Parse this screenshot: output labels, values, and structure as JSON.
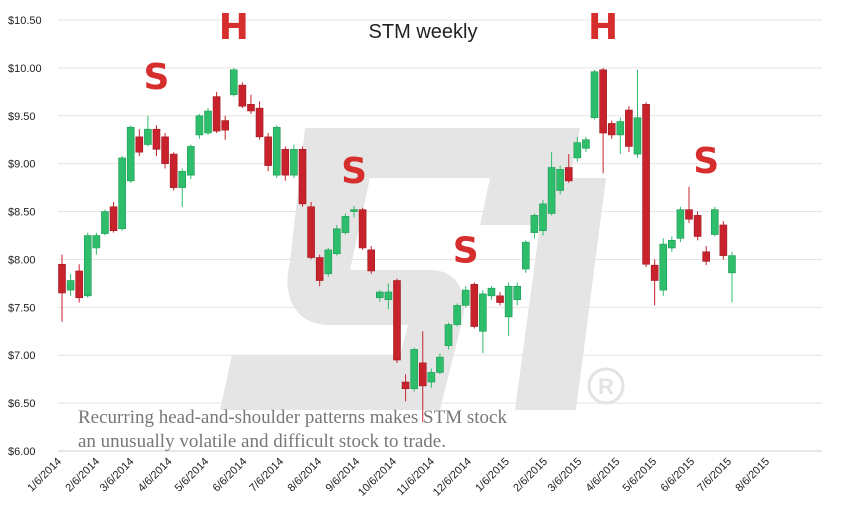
{
  "chart_data": {
    "type": "candlestick",
    "title": "STM weekly",
    "ylim": [
      6.0,
      10.5
    ],
    "yticks": [
      "$6.00",
      "$6.50",
      "$7.00",
      "$7.50",
      "$8.00",
      "$8.50",
      "$9.00",
      "$9.50",
      "$10.00",
      "$10.50"
    ],
    "ytick_values": [
      6.0,
      6.5,
      7.0,
      7.5,
      8.0,
      8.5,
      9.0,
      9.5,
      10.0,
      10.5
    ],
    "xticks": [
      "1/6/2014",
      "2/6/2014",
      "3/6/2014",
      "4/6/2014",
      "5/6/2014",
      "6/6/2014",
      "7/6/2014",
      "8/6/2014",
      "9/6/2014",
      "10/6/2014",
      "11/6/2014",
      "12/6/2014",
      "1/6/2015",
      "2/6/2015",
      "3/6/2015",
      "4/6/2015",
      "5/6/2015",
      "6/6/2015",
      "7/6/2015",
      "8/6/2015"
    ],
    "grid": true,
    "up_color": "#2ebd6b",
    "down_color": "#c8232c",
    "annotations": [
      {
        "text": "S",
        "x": "2014-03-24",
        "y": 9.78
      },
      {
        "text": "H",
        "x": "2014-05-26",
        "y": 10.3
      },
      {
        "text": "S",
        "x": "2014-09-01",
        "y": 8.8
      },
      {
        "text": "S",
        "x": "2014-12-01",
        "y": 7.97
      },
      {
        "text": "H",
        "x": "2015-03-23",
        "y": 10.3
      },
      {
        "text": "S",
        "x": "2015-06-15",
        "y": 8.9
      }
    ],
    "note": [
      "Recurring head-and-shoulder patterns makes STM stock",
      "an unusually volatile and difficult stock to trade."
    ],
    "candles": [
      {
        "date": "2014-01-06",
        "o": 7.95,
        "h": 8.05,
        "l": 7.35,
        "c": 7.65
      },
      {
        "date": "2014-01-13",
        "o": 7.68,
        "h": 7.85,
        "l": 7.62,
        "c": 7.78
      },
      {
        "date": "2014-01-20",
        "o": 7.88,
        "h": 7.95,
        "l": 7.55,
        "c": 7.6
      },
      {
        "date": "2014-01-27",
        "o": 7.62,
        "h": 8.28,
        "l": 7.6,
        "c": 8.25
      },
      {
        "date": "2014-02-03",
        "o": 8.12,
        "h": 8.28,
        "l": 8.05,
        "c": 8.25
      },
      {
        "date": "2014-02-10",
        "o": 8.27,
        "h": 8.52,
        "l": 8.25,
        "c": 8.5
      },
      {
        "date": "2014-02-17",
        "o": 8.55,
        "h": 8.6,
        "l": 8.28,
        "c": 8.3
      },
      {
        "date": "2014-02-24",
        "o": 8.32,
        "h": 9.08,
        "l": 8.3,
        "c": 9.06
      },
      {
        "date": "2014-03-03",
        "o": 8.82,
        "h": 9.4,
        "l": 8.8,
        "c": 9.38
      },
      {
        "date": "2014-03-10",
        "o": 9.28,
        "h": 9.36,
        "l": 9.08,
        "c": 9.12
      },
      {
        "date": "2014-03-17",
        "o": 9.2,
        "h": 9.5,
        "l": 9.18,
        "c": 9.36
      },
      {
        "date": "2014-03-24",
        "o": 9.36,
        "h": 9.4,
        "l": 9.08,
        "c": 9.15
      },
      {
        "date": "2014-03-31",
        "o": 9.28,
        "h": 9.32,
        "l": 8.95,
        "c": 9.0
      },
      {
        "date": "2014-04-07",
        "o": 9.1,
        "h": 9.12,
        "l": 8.72,
        "c": 8.75
      },
      {
        "date": "2014-04-14",
        "o": 8.75,
        "h": 8.95,
        "l": 8.55,
        "c": 8.92
      },
      {
        "date": "2014-04-21",
        "o": 8.88,
        "h": 9.2,
        "l": 8.84,
        "c": 9.18
      },
      {
        "date": "2014-04-28",
        "o": 9.3,
        "h": 9.52,
        "l": 9.26,
        "c": 9.5
      },
      {
        "date": "2014-05-05",
        "o": 9.32,
        "h": 9.58,
        "l": 9.3,
        "c": 9.55
      },
      {
        "date": "2014-05-12",
        "o": 9.7,
        "h": 9.75,
        "l": 9.32,
        "c": 9.34
      },
      {
        "date": "2014-05-19",
        "o": 9.45,
        "h": 9.5,
        "l": 9.25,
        "c": 9.35
      },
      {
        "date": "2014-05-26",
        "o": 9.72,
        "h": 10.0,
        "l": 9.7,
        "c": 9.98
      },
      {
        "date": "2014-06-02",
        "o": 9.82,
        "h": 9.85,
        "l": 9.58,
        "c": 9.6
      },
      {
        "date": "2014-06-09",
        "o": 9.62,
        "h": 9.72,
        "l": 9.52,
        "c": 9.55
      },
      {
        "date": "2014-06-16",
        "o": 9.58,
        "h": 9.65,
        "l": 9.25,
        "c": 9.28
      },
      {
        "date": "2014-06-23",
        "o": 9.28,
        "h": 9.32,
        "l": 8.92,
        "c": 8.98
      },
      {
        "date": "2014-06-30",
        "o": 8.88,
        "h": 9.4,
        "l": 8.85,
        "c": 9.38
      },
      {
        "date": "2014-07-07",
        "o": 9.15,
        "h": 9.18,
        "l": 8.82,
        "c": 8.88
      },
      {
        "date": "2014-07-14",
        "o": 8.88,
        "h": 9.2,
        "l": 8.85,
        "c": 9.15
      },
      {
        "date": "2014-07-21",
        "o": 9.15,
        "h": 9.18,
        "l": 8.55,
        "c": 8.58
      },
      {
        "date": "2014-07-28",
        "o": 8.55,
        "h": 8.6,
        "l": 8.0,
        "c": 8.02
      },
      {
        "date": "2014-08-04",
        "o": 8.02,
        "h": 8.05,
        "l": 7.72,
        "c": 7.78
      },
      {
        "date": "2014-08-11",
        "o": 7.85,
        "h": 8.12,
        "l": 7.82,
        "c": 8.1
      },
      {
        "date": "2014-08-18",
        "o": 8.06,
        "h": 8.36,
        "l": 8.04,
        "c": 8.32
      },
      {
        "date": "2014-08-25",
        "o": 8.28,
        "h": 8.48,
        "l": 8.26,
        "c": 8.45
      },
      {
        "date": "2014-09-01",
        "o": 8.5,
        "h": 8.56,
        "l": 8.44,
        "c": 8.52
      },
      {
        "date": "2014-09-08",
        "o": 8.52,
        "h": 8.54,
        "l": 8.1,
        "c": 8.12
      },
      {
        "date": "2014-09-15",
        "o": 8.1,
        "h": 8.14,
        "l": 7.85,
        "c": 7.88
      },
      {
        "date": "2014-09-22",
        "o": 7.6,
        "h": 7.68,
        "l": 7.56,
        "c": 7.66
      },
      {
        "date": "2014-09-29",
        "o": 7.58,
        "h": 7.75,
        "l": 7.48,
        "c": 7.66
      },
      {
        "date": "2014-10-06",
        "o": 7.78,
        "h": 7.8,
        "l": 6.92,
        "c": 6.95
      },
      {
        "date": "2014-10-13",
        "o": 6.72,
        "h": 6.8,
        "l": 6.52,
        "c": 6.65
      },
      {
        "date": "2014-10-20",
        "o": 6.65,
        "h": 7.08,
        "l": 6.62,
        "c": 7.06
      },
      {
        "date": "2014-10-27",
        "o": 6.92,
        "h": 7.25,
        "l": 6.3,
        "c": 6.68
      },
      {
        "date": "2014-11-03",
        "o": 6.72,
        "h": 6.86,
        "l": 6.66,
        "c": 6.82
      },
      {
        "date": "2014-11-10",
        "o": 6.82,
        "h": 7.02,
        "l": 6.8,
        "c": 6.98
      },
      {
        "date": "2014-11-17",
        "o": 7.1,
        "h": 7.34,
        "l": 7.06,
        "c": 7.32
      },
      {
        "date": "2014-11-24",
        "o": 7.32,
        "h": 7.54,
        "l": 7.3,
        "c": 7.52
      },
      {
        "date": "2014-12-01",
        "o": 7.52,
        "h": 7.72,
        "l": 7.5,
        "c": 7.68
      },
      {
        "date": "2014-12-08",
        "o": 7.74,
        "h": 7.76,
        "l": 7.28,
        "c": 7.3
      },
      {
        "date": "2014-12-15",
        "o": 7.25,
        "h": 7.68,
        "l": 7.02,
        "c": 7.64
      },
      {
        "date": "2014-12-22",
        "o": 7.62,
        "h": 7.72,
        "l": 7.58,
        "c": 7.7
      },
      {
        "date": "2014-12-29",
        "o": 7.62,
        "h": 7.66,
        "l": 7.52,
        "c": 7.55
      },
      {
        "date": "2015-01-05",
        "o": 7.4,
        "h": 7.76,
        "l": 7.2,
        "c": 7.72
      },
      {
        "date": "2015-01-12",
        "o": 7.58,
        "h": 7.76,
        "l": 7.52,
        "c": 7.72
      },
      {
        "date": "2015-01-19",
        "o": 7.9,
        "h": 8.2,
        "l": 7.86,
        "c": 8.18
      },
      {
        "date": "2015-01-26",
        "o": 8.28,
        "h": 8.48,
        "l": 8.22,
        "c": 8.46
      },
      {
        "date": "2015-02-02",
        "o": 8.3,
        "h": 8.62,
        "l": 8.25,
        "c": 8.58
      },
      {
        "date": "2015-02-09",
        "o": 8.48,
        "h": 9.12,
        "l": 8.46,
        "c": 8.96
      },
      {
        "date": "2015-02-16",
        "o": 8.72,
        "h": 8.98,
        "l": 8.68,
        "c": 8.94
      },
      {
        "date": "2015-02-23",
        "o": 8.96,
        "h": 9.1,
        "l": 8.8,
        "c": 8.82
      },
      {
        "date": "2015-03-02",
        "o": 9.06,
        "h": 9.28,
        "l": 9.02,
        "c": 9.22
      },
      {
        "date": "2015-03-09",
        "o": 9.16,
        "h": 9.28,
        "l": 9.12,
        "c": 9.25
      },
      {
        "date": "2015-03-16",
        "o": 9.48,
        "h": 9.98,
        "l": 9.46,
        "c": 9.96
      },
      {
        "date": "2015-03-23",
        "o": 9.98,
        "h": 10.0,
        "l": 8.9,
        "c": 9.32
      },
      {
        "date": "2015-03-30",
        "o": 9.42,
        "h": 9.45,
        "l": 9.26,
        "c": 9.3
      },
      {
        "date": "2015-04-06",
        "o": 9.3,
        "h": 9.48,
        "l": 9.1,
        "c": 9.44
      },
      {
        "date": "2015-04-13",
        "o": 9.56,
        "h": 9.6,
        "l": 9.12,
        "c": 9.18
      },
      {
        "date": "2015-04-20",
        "o": 9.1,
        "h": 9.98,
        "l": 9.06,
        "c": 9.48
      },
      {
        "date": "2015-04-27",
        "o": 9.62,
        "h": 9.64,
        "l": 7.92,
        "c": 7.95
      },
      {
        "date": "2015-05-04",
        "o": 7.94,
        "h": 8.0,
        "l": 7.52,
        "c": 7.78
      },
      {
        "date": "2015-05-11",
        "o": 7.68,
        "h": 8.22,
        "l": 7.62,
        "c": 8.16
      },
      {
        "date": "2015-05-18",
        "o": 8.12,
        "h": 8.24,
        "l": 8.08,
        "c": 8.2
      },
      {
        "date": "2015-05-25",
        "o": 8.22,
        "h": 8.55,
        "l": 8.18,
        "c": 8.52
      },
      {
        "date": "2015-06-01",
        "o": 8.52,
        "h": 8.76,
        "l": 8.38,
        "c": 8.42
      },
      {
        "date": "2015-06-08",
        "o": 8.46,
        "h": 8.5,
        "l": 8.2,
        "c": 8.24
      },
      {
        "date": "2015-06-15",
        "o": 8.08,
        "h": 8.14,
        "l": 7.94,
        "c": 7.98
      },
      {
        "date": "2015-06-22",
        "o": 8.26,
        "h": 8.55,
        "l": 8.24,
        "c": 8.52
      },
      {
        "date": "2015-06-29",
        "o": 8.36,
        "h": 8.4,
        "l": 8.0,
        "c": 8.04
      },
      {
        "date": "2015-07-06",
        "o": 7.86,
        "h": 8.08,
        "l": 7.55,
        "c": 8.04
      }
    ]
  }
}
